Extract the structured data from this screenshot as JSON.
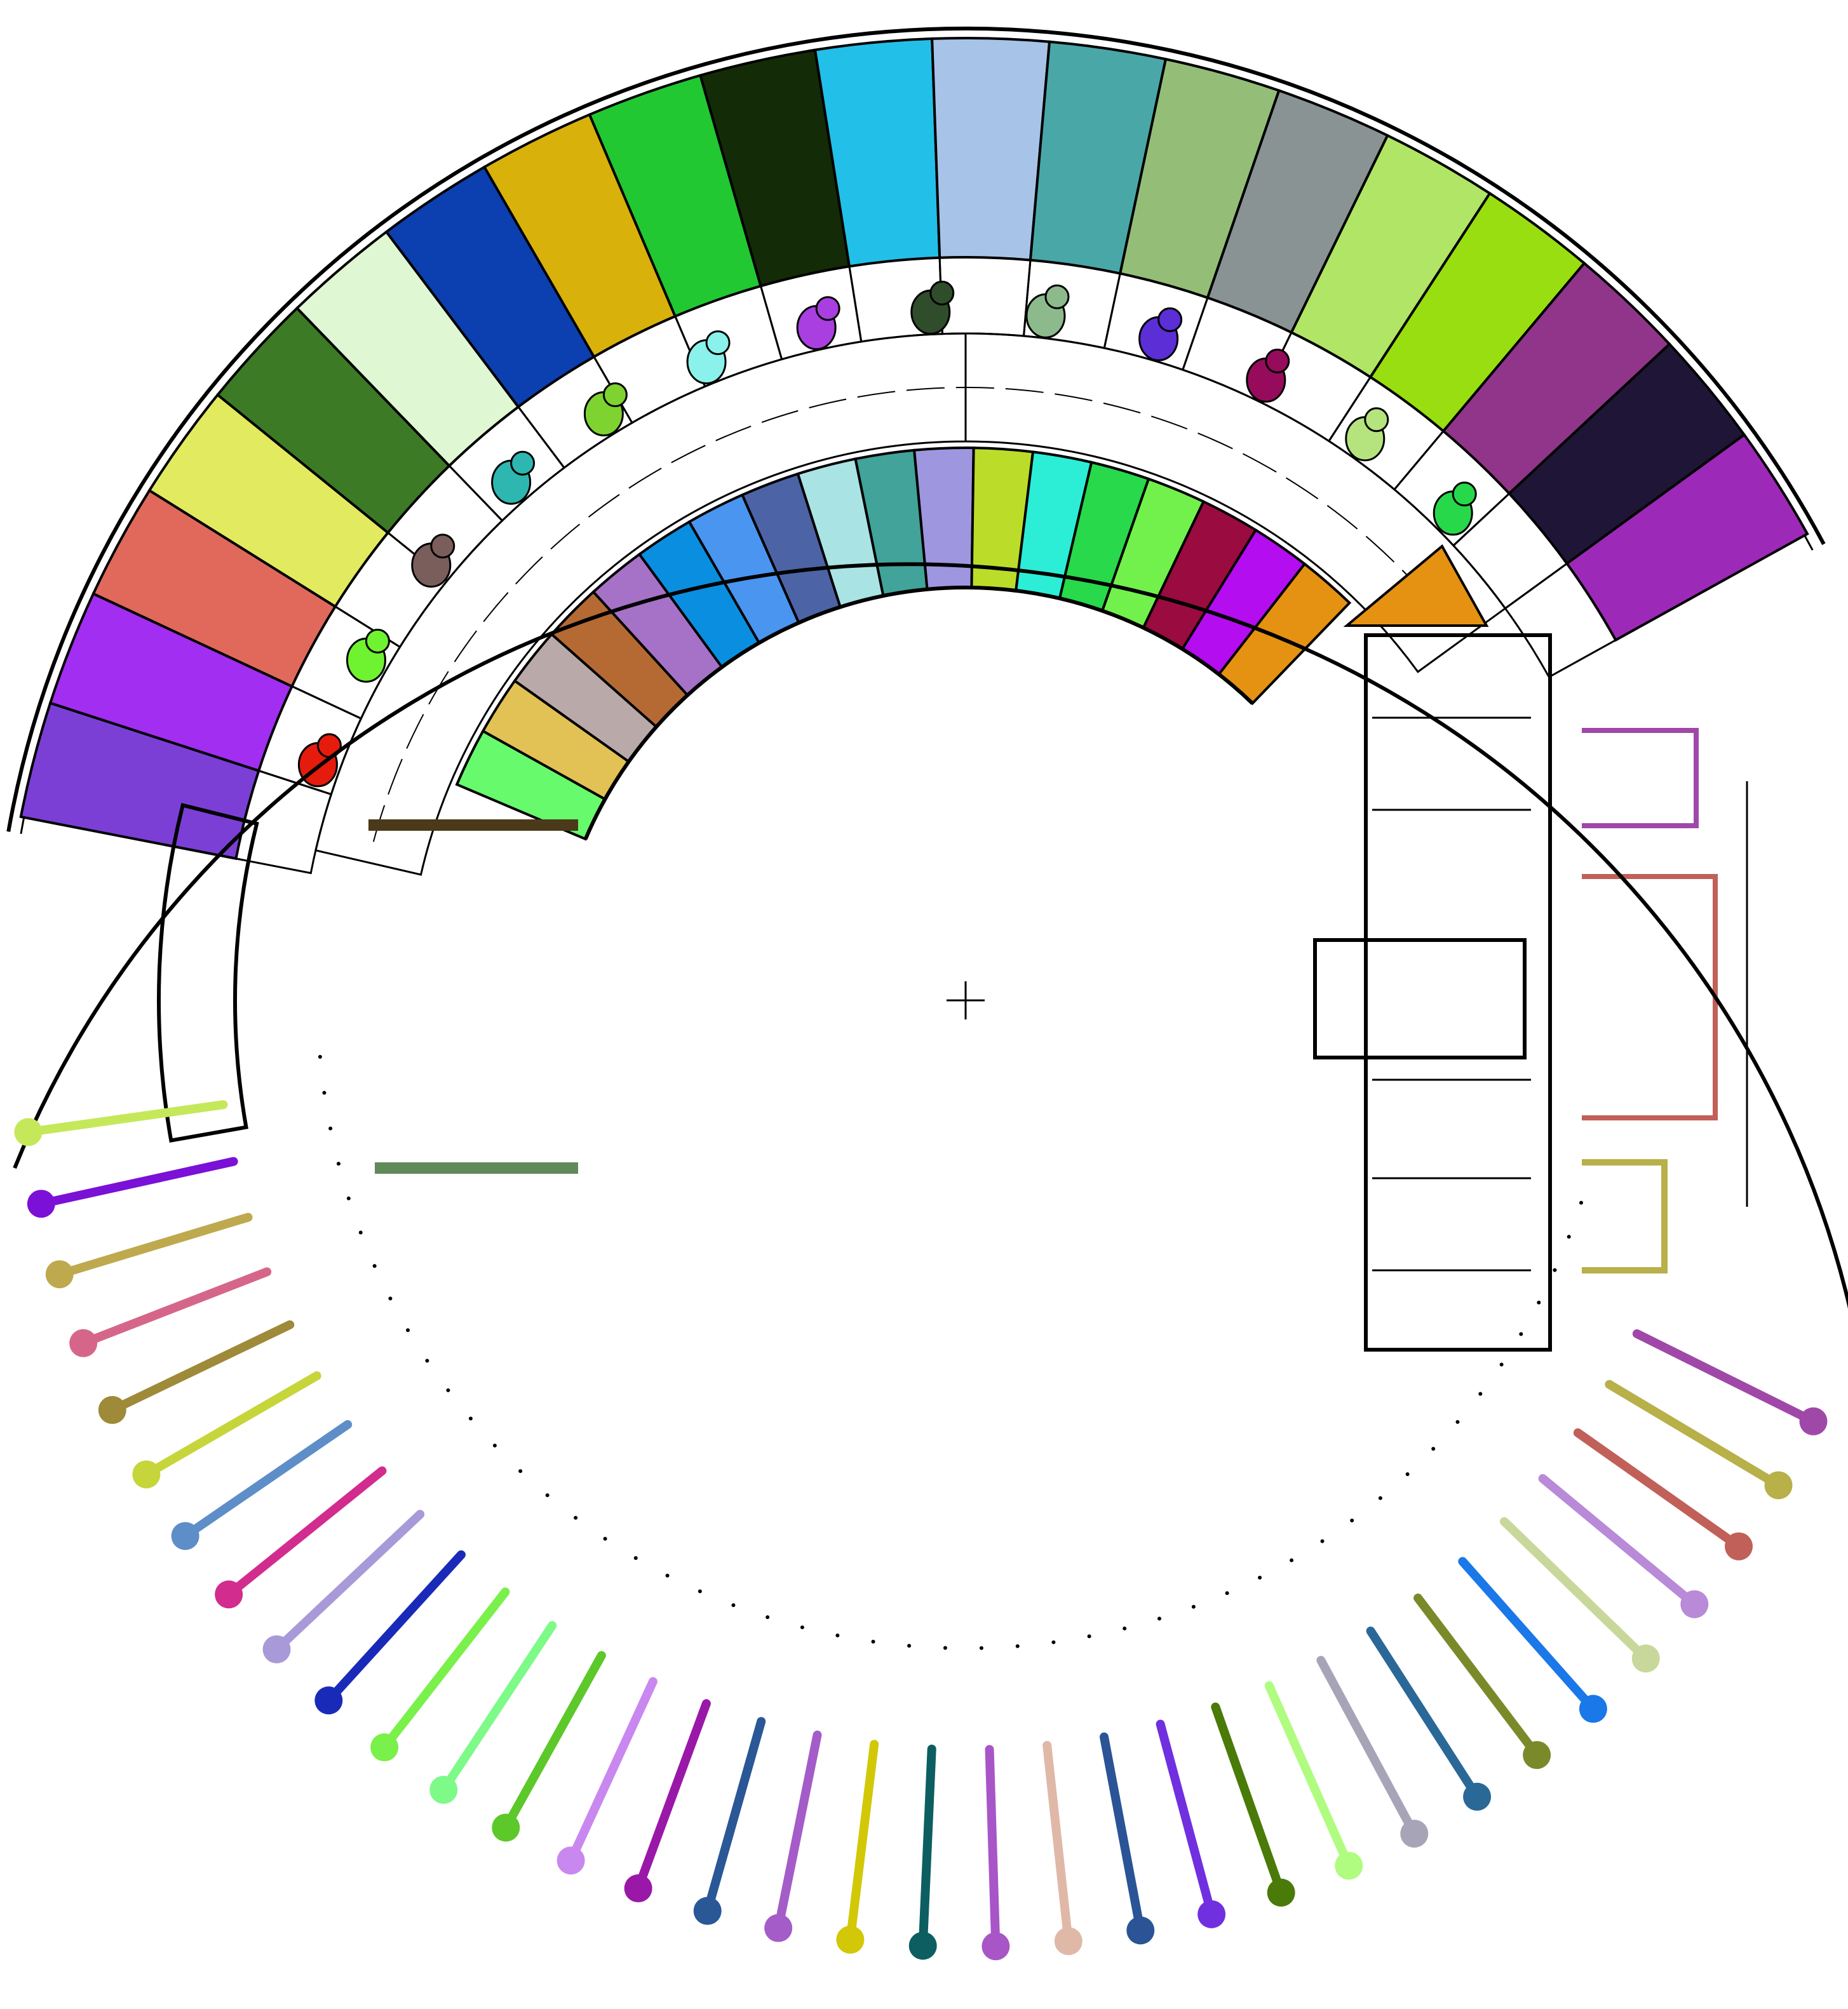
{
  "rooms": {
    "outer_ring": [
      {
        "id": "r1",
        "color": "#7b3fd6"
      },
      {
        "id": "r2",
        "color": "#a12ef0"
      },
      {
        "id": "r3",
        "color": "#e0695c"
      },
      {
        "id": "r4",
        "color": "#e2ea5f"
      },
      {
        "id": "r5",
        "color": "#3c7a26"
      },
      {
        "id": "r6",
        "color": "#dff7d3"
      },
      {
        "id": "r7",
        "color": "#0c3fb0"
      },
      {
        "id": "r8",
        "color": "#d8b10b"
      },
      {
        "id": "r9",
        "color": "#21c832"
      },
      {
        "id": "r10",
        "color": "#132b07"
      },
      {
        "id": "r11",
        "color": "#22c0e8"
      },
      {
        "id": "r12",
        "color": "#a7c4e8"
      },
      {
        "id": "r13",
        "color": "#4aa7a8"
      },
      {
        "id": "r14",
        "color": "#94be78"
      },
      {
        "id": "r15",
        "color": "#8a9393"
      },
      {
        "id": "r16",
        "color": "#b0e565"
      },
      {
        "id": "r17",
        "color": "#99de10"
      },
      {
        "id": "r18",
        "color": "#90358a"
      },
      {
        "id": "r19",
        "color": "#1f1637"
      },
      {
        "id": "r20",
        "color": "#9d29b8"
      }
    ],
    "inner_ring": [
      {
        "id": "i1",
        "color": "#67fa6d"
      },
      {
        "id": "i2",
        "color": "#e2c254"
      },
      {
        "id": "i3",
        "color": "#b9aaa9"
      },
      {
        "id": "i4",
        "color": "#b56a34"
      },
      {
        "id": "i5",
        "color": "#a572c7"
      },
      {
        "id": "i6",
        "color": "#0a8fe0"
      },
      {
        "id": "i7",
        "color": "#4a95f0"
      },
      {
        "id": "i8",
        "color": "#4c63a6"
      },
      {
        "id": "i9",
        "color": "#aae3e4"
      },
      {
        "id": "i10",
        "color": "#41a39a"
      },
      {
        "id": "i11",
        "color": "#9f96e0"
      },
      {
        "id": "i12",
        "color": "#bcdc2a"
      },
      {
        "id": "i13",
        "color": "#2ceed6"
      },
      {
        "id": "i14",
        "color": "#27d94b"
      },
      {
        "id": "i15",
        "color": "#72f14c"
      },
      {
        "id": "i16",
        "color": "#9a0b3f"
      },
      {
        "id": "i17",
        "color": "#b40df0"
      },
      {
        "id": "i18",
        "color": "#e59213"
      }
    ],
    "corridor": "#ffffa8",
    "bridge": "#2258da",
    "core": "#8d212c",
    "wc_shapes": [
      "#e51b0d",
      "#6ff230",
      "#7a5e5c",
      "#2eb7b0",
      "#7ed330",
      "#8af2ea",
      "#a93fe0",
      "#2f4d2a",
      "#8cba8c",
      "#5b2ed6",
      "#960b5b",
      "#b5e47e",
      "#28d84b"
    ],
    "lower_level": [
      "#c5e85a",
      "#7b10d6",
      "#bea94e",
      "#d5668a",
      "#9e8a38",
      "#c6d53a",
      "#5d8ec8",
      "#d12c8e",
      "#a89ad8",
      "#1a2ab8",
      "#7af04a",
      "#7dfa88",
      "#5cc82a",
      "#c888f0",
      "#9a18a8",
      "#2a5796",
      "#a45cc8",
      "#d2c807",
      "#0d5e60",
      "#a855c8",
      "#e0b8a8",
      "#2a5496",
      "#7030e0",
      "#4a7a08",
      "#b0fc80",
      "#a8a4b8",
      "#2a6898",
      "#7a8a2a",
      "#1a78e8",
      "#c8d89a",
      "#b88ad8",
      "#c06058",
      "#b8b048",
      "#a048a8"
    ]
  }
}
